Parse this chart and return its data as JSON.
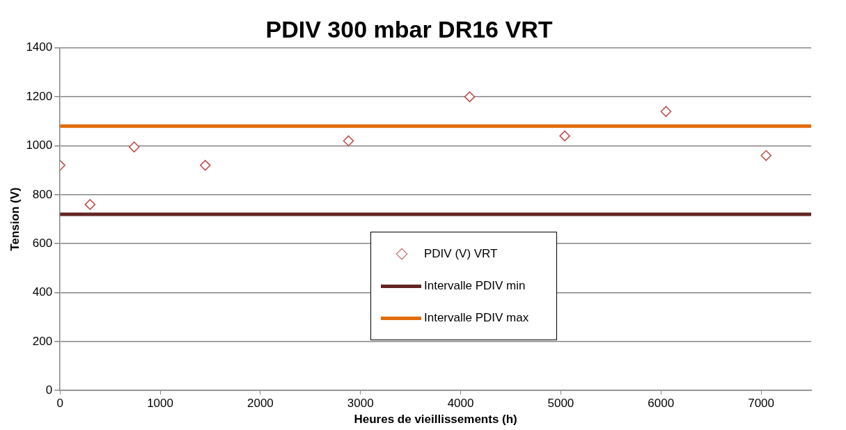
{
  "chart_data": {
    "type": "scatter",
    "title": "PDIV 300 mbar DR16 VRT",
    "xlabel": "Heures de vieillissements (h)",
    "ylabel": "Tension (V)",
    "xlim": [
      0,
      7500
    ],
    "xticks": [
      0,
      1000,
      2000,
      3000,
      4000,
      5000,
      6000,
      7000
    ],
    "ylim": [
      0,
      1400
    ],
    "yticks": [
      0,
      200,
      400,
      600,
      800,
      1000,
      1200,
      1400
    ],
    "grid": "y",
    "legend": "bottom right",
    "series": [
      {
        "name": "PDIV (V) VRT",
        "type": "scatter",
        "marker": "diamond",
        "color": "#c0504d",
        "x": [
          0,
          300,
          740,
          1450,
          2880,
          4090,
          5040,
          6050,
          7050
        ],
        "values": [
          920,
          760,
          995,
          920,
          1020,
          1200,
          1040,
          1140,
          960
        ]
      },
      {
        "name": "Intervalle PDIV min",
        "type": "line",
        "marker": "none",
        "color": "#632523",
        "x": [
          0,
          7500
        ],
        "values": [
          720,
          720
        ]
      },
      {
        "name": "Intervalle PDIV max",
        "type": "line",
        "marker": "none",
        "color": "#e36c09",
        "x": [
          0,
          7500
        ],
        "values": [
          1080,
          1080
        ]
      }
    ]
  }
}
